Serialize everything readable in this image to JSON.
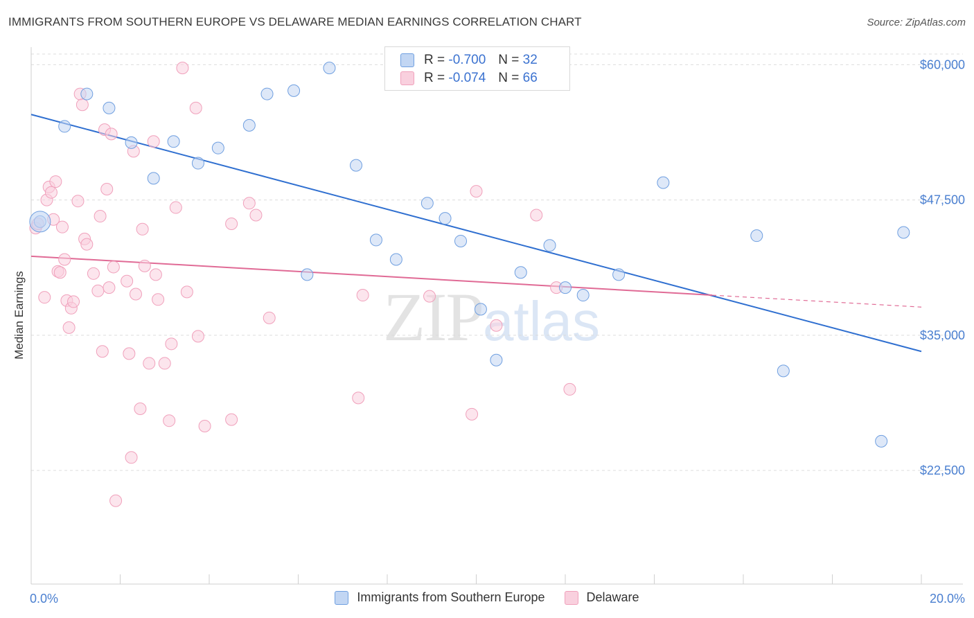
{
  "title": "IMMIGRANTS FROM SOUTHERN EUROPE VS DELAWARE MEDIAN EARNINGS CORRELATION CHART",
  "source": "Source: ZipAtlas.com",
  "legend_top": {
    "rows": [
      {
        "r_label": "R =",
        "r_value": "-0.700",
        "n_label": "N =",
        "n_value": "32"
      },
      {
        "r_label": "R =",
        "r_value": "-0.074",
        "n_label": "N =",
        "n_value": "66"
      }
    ]
  },
  "watermark": {
    "zip": "ZIP",
    "atlas": "atlas"
  },
  "chart_data": {
    "type": "scatter",
    "title": "IMMIGRANTS FROM SOUTHERN EUROPE VS DELAWARE MEDIAN EARNINGS CORRELATION CHART",
    "xlabel": "",
    "ylabel": "Median Earnings",
    "xlim": [
      0,
      20
    ],
    "ylim": [
      12000,
      61500
    ],
    "x_tick_labels": [
      "0.0%",
      "20.0%"
    ],
    "y_ticks": [
      22500,
      35000,
      47500,
      60000
    ],
    "y_tick_labels": [
      "$22,500",
      "$35,000",
      "$47,500",
      "$60,000"
    ],
    "grid": "horizontal dashed",
    "legend_position": "bottom",
    "colors": {
      "blue": "#6f9fe0",
      "pink": "#f0a0bb",
      "blue_line": "#2f6fd0",
      "pink_line": "#e06a95"
    },
    "series": [
      {
        "name": "Immigrants from Southern Europe",
        "color": "#6f9fe0",
        "points": [
          [
            0.2,
            45500
          ],
          [
            0.75,
            54300
          ],
          [
            1.25,
            57300
          ],
          [
            1.75,
            56000
          ],
          [
            2.25,
            52800
          ],
          [
            2.75,
            49500
          ],
          [
            3.2,
            52900
          ],
          [
            3.75,
            50900
          ],
          [
            4.2,
            52300
          ],
          [
            4.9,
            54400
          ],
          [
            5.3,
            57300
          ],
          [
            5.9,
            57600
          ],
          [
            6.2,
            40600
          ],
          [
            6.7,
            59700
          ],
          [
            7.3,
            50700
          ],
          [
            7.75,
            43800
          ],
          [
            8.2,
            42000
          ],
          [
            8.9,
            47200
          ],
          [
            9.3,
            45800
          ],
          [
            9.65,
            43700
          ],
          [
            10.1,
            37400
          ],
          [
            10.45,
            32700
          ],
          [
            11.0,
            40800
          ],
          [
            11.65,
            43300
          ],
          [
            12.0,
            39400
          ],
          [
            12.4,
            38700
          ],
          [
            13.2,
            40600
          ],
          [
            14.2,
            49100
          ],
          [
            16.3,
            44200
          ],
          [
            16.9,
            31700
          ],
          [
            19.1,
            25200
          ],
          [
            19.6,
            44500
          ]
        ],
        "trend": {
          "x": [
            0,
            20
          ],
          "y": [
            55400,
            33500
          ]
        }
      },
      {
        "name": "Delaware",
        "color": "#f0a0bb",
        "points": [
          [
            0.1,
            44900
          ],
          [
            0.15,
            45300
          ],
          [
            0.3,
            38500
          ],
          [
            0.35,
            47500
          ],
          [
            0.4,
            48700
          ],
          [
            0.45,
            48200
          ],
          [
            0.5,
            45700
          ],
          [
            0.55,
            49200
          ],
          [
            0.6,
            40900
          ],
          [
            0.65,
            40800
          ],
          [
            0.7,
            45000
          ],
          [
            0.75,
            42000
          ],
          [
            0.8,
            38200
          ],
          [
            0.85,
            35700
          ],
          [
            0.9,
            37500
          ],
          [
            0.95,
            38100
          ],
          [
            1.05,
            47400
          ],
          [
            1.1,
            57300
          ],
          [
            1.15,
            56300
          ],
          [
            1.2,
            43900
          ],
          [
            1.25,
            43400
          ],
          [
            1.4,
            40700
          ],
          [
            1.5,
            39100
          ],
          [
            1.55,
            46000
          ],
          [
            1.6,
            33500
          ],
          [
            1.65,
            54000
          ],
          [
            1.7,
            48500
          ],
          [
            1.75,
            39400
          ],
          [
            1.8,
            53600
          ],
          [
            1.85,
            41300
          ],
          [
            1.9,
            19700
          ],
          [
            2.15,
            40000
          ],
          [
            2.2,
            33300
          ],
          [
            2.25,
            23700
          ],
          [
            2.3,
            52000
          ],
          [
            2.35,
            38800
          ],
          [
            2.45,
            28200
          ],
          [
            2.5,
            44800
          ],
          [
            2.55,
            41400
          ],
          [
            2.65,
            32400
          ],
          [
            2.75,
            52900
          ],
          [
            2.8,
            40600
          ],
          [
            2.85,
            38300
          ],
          [
            3.0,
            32400
          ],
          [
            3.1,
            27100
          ],
          [
            3.15,
            34200
          ],
          [
            3.25,
            46800
          ],
          [
            3.4,
            59700
          ],
          [
            3.5,
            39000
          ],
          [
            3.7,
            56000
          ],
          [
            3.75,
            34900
          ],
          [
            3.9,
            26600
          ],
          [
            4.5,
            27200
          ],
          [
            4.5,
            45300
          ],
          [
            4.9,
            47200
          ],
          [
            5.05,
            46100
          ],
          [
            5.35,
            36600
          ],
          [
            7.35,
            29200
          ],
          [
            7.45,
            38700
          ],
          [
            8.95,
            38600
          ],
          [
            9.9,
            27700
          ],
          [
            10.0,
            48300
          ],
          [
            10.45,
            35900
          ],
          [
            11.35,
            46100
          ],
          [
            11.8,
            39400
          ],
          [
            12.1,
            30000
          ]
        ],
        "trend": {
          "x": [
            0,
            15.3,
            20
          ],
          "y": [
            42300,
            38700,
            37600
          ]
        }
      }
    ]
  },
  "legend_bottom": [
    {
      "label": "Immigrants from Southern Europe",
      "color": "#6f9fe0"
    },
    {
      "label": "Delaware",
      "color": "#f0a0bb"
    }
  ]
}
